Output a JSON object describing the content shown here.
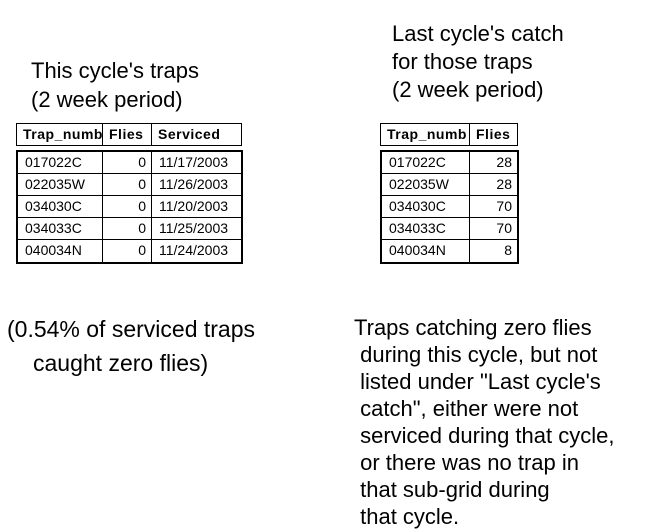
{
  "page": {
    "background": "#ffffff",
    "text_color": "#000000",
    "border_color": "#000000"
  },
  "left_section": {
    "title_line1": "This cycle's traps",
    "title_line2": "(2 week period)",
    "table": {
      "columns": [
        "Trap_numb",
        "Flies",
        "Serviced"
      ],
      "rows": [
        {
          "trap_number": "017022C",
          "flies": "0",
          "serviced": "11/17/2003"
        },
        {
          "trap_number": "022035W",
          "flies": "0",
          "serviced": "11/26/2003"
        },
        {
          "trap_number": "034030C",
          "flies": "0",
          "serviced": "11/20/2003"
        },
        {
          "trap_number": "034033C",
          "flies": "0",
          "serviced": "11/25/2003"
        },
        {
          "trap_number": "040034N",
          "flies": "0",
          "serviced": "11/24/2003"
        }
      ]
    },
    "note_line1": "(0.54% of serviced traps",
    "note_line2": "caught zero flies)"
  },
  "right_section": {
    "title_line1": "Last cycle's catch",
    "title_line2": "for those traps",
    "title_line3": "(2 week period)",
    "table": {
      "columns": [
        "Trap_numb",
        "Flies"
      ],
      "rows": [
        {
          "trap_number": "017022C",
          "flies": "28"
        },
        {
          "trap_number": "022035W",
          "flies": "28"
        },
        {
          "trap_number": "034030C",
          "flies": "70"
        },
        {
          "trap_number": "034033C",
          "flies": "70"
        },
        {
          "trap_number": "040034N",
          "flies": "8"
        }
      ]
    },
    "note": "Traps catching zero flies\n during this cycle, but not\n listed under \"Last cycle's\n catch\", either were not\n serviced during that cycle,\n or there was no trap in\n that sub-grid during\n that cycle."
  }
}
